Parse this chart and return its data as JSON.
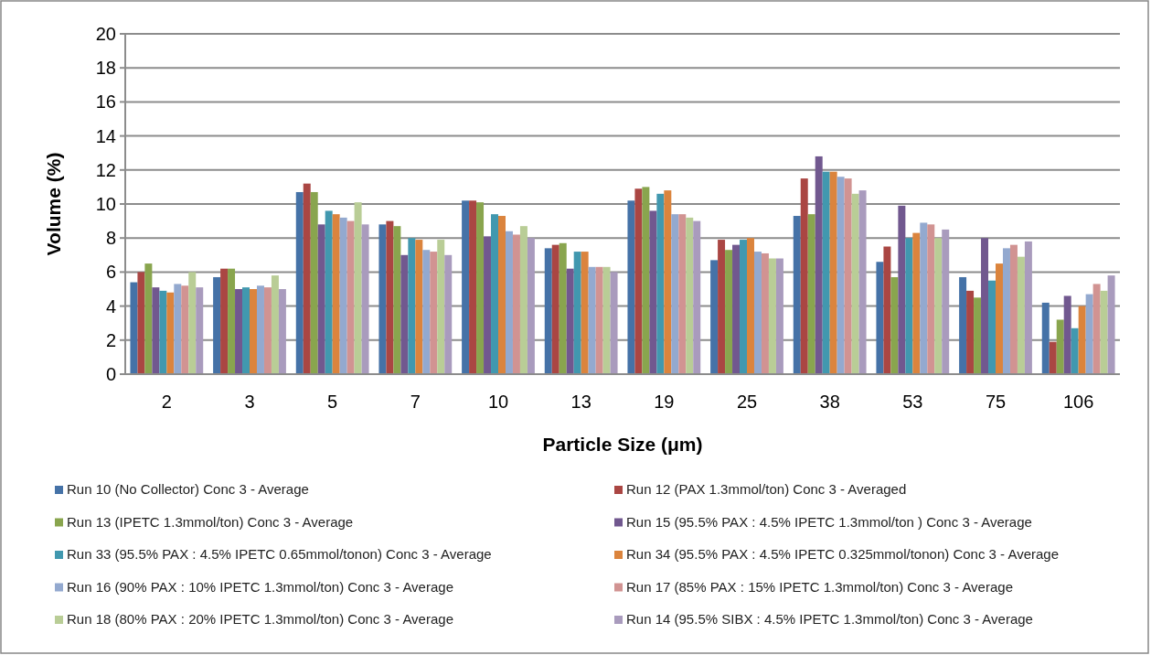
{
  "chart_data": {
    "type": "bar",
    "xlabel": "Particle Size (μm)",
    "ylabel": "Volume (%)",
    "categories": [
      "2",
      "3",
      "5",
      "7",
      "10",
      "13",
      "19",
      "25",
      "38",
      "53",
      "75",
      "106"
    ],
    "ylim": [
      0,
      20
    ],
    "yticks": [
      0,
      2,
      4,
      6,
      8,
      10,
      12,
      14,
      16,
      18,
      20
    ],
    "grid": "y",
    "legend": "bottom",
    "series": [
      {
        "name": "Run 10 (No Collector) Conc 3 - Average",
        "color": "#4572a7",
        "values": [
          5.4,
          5.7,
          10.7,
          8.8,
          10.2,
          7.4,
          10.2,
          6.7,
          9.3,
          6.6,
          5.7,
          4.2
        ]
      },
      {
        "name": "Run 12 (PAX 1.3mmol/ton) Conc 3 - Averaged",
        "color": "#aa4643",
        "values": [
          6.0,
          6.2,
          11.2,
          9.0,
          10.2,
          7.6,
          10.9,
          7.9,
          11.5,
          7.5,
          4.9,
          1.9
        ]
      },
      {
        "name": "Run 13 (IPETC 1.3mmol/ton) Conc 3 - Average",
        "color": "#89a54e",
        "values": [
          6.5,
          6.2,
          10.7,
          8.7,
          10.1,
          7.7,
          11.0,
          7.3,
          9.4,
          5.7,
          4.5,
          3.2
        ]
      },
      {
        "name": "Run 15 (95.5% PAX  : 4.5% IPETC 1.3mmol/ton ) Conc 3 - Average",
        "color": "#71588f",
        "values": [
          5.1,
          5.0,
          8.8,
          7.0,
          8.1,
          6.2,
          9.6,
          7.6,
          12.8,
          9.9,
          8.0,
          4.6
        ]
      },
      {
        "name": "Run 33 (95.5% PAX  : 4.5% IPETC 0.65mmol/tonon) Conc 3 - Average",
        "color": "#4198af",
        "values": [
          4.9,
          5.1,
          9.6,
          8.0,
          9.4,
          7.2,
          10.6,
          7.9,
          11.9,
          8.0,
          5.5,
          2.7
        ]
      },
      {
        "name": "Run 34 (95.5% PAX  : 4.5% IPETC 0.325mmol/tonon) Conc 3 - Average",
        "color": "#db843d",
        "values": [
          4.8,
          5.0,
          9.4,
          7.9,
          9.3,
          7.2,
          10.8,
          8.0,
          11.9,
          8.3,
          6.5,
          4.0
        ]
      },
      {
        "name": "Run 16 (90% PAX  : 10% IPETC 1.3mmol/ton) Conc 3 - Average",
        "color": "#93a9cf",
        "values": [
          5.3,
          5.2,
          9.2,
          7.3,
          8.4,
          6.3,
          9.4,
          7.2,
          11.6,
          8.9,
          7.4,
          4.7
        ]
      },
      {
        "name": "Run 17 (85% PAX  : 15% IPETC 1.3mmol/ton) Conc 3 - Average",
        "color": "#d19392",
        "values": [
          5.2,
          5.1,
          9.0,
          7.2,
          8.2,
          6.3,
          9.4,
          7.1,
          11.5,
          8.8,
          7.6,
          5.3
        ]
      },
      {
        "name": "Run 18 (80% PAX  : 20% IPETC 1.3mmol/ton) Conc 3 - Average",
        "color": "#b9cd96",
        "values": [
          6.0,
          5.8,
          10.1,
          7.9,
          8.7,
          6.3,
          9.2,
          6.8,
          10.6,
          8.0,
          6.9,
          4.9
        ]
      },
      {
        "name": "Run 14 (95.5% SIBX  : 4.5% IPETC 1.3mmol/ton) Conc 3 - Average",
        "color": "#a99bbd",
        "values": [
          5.1,
          5.0,
          8.8,
          7.0,
          8.0,
          6.0,
          9.0,
          6.8,
          10.8,
          8.5,
          7.8,
          5.8
        ]
      }
    ]
  }
}
